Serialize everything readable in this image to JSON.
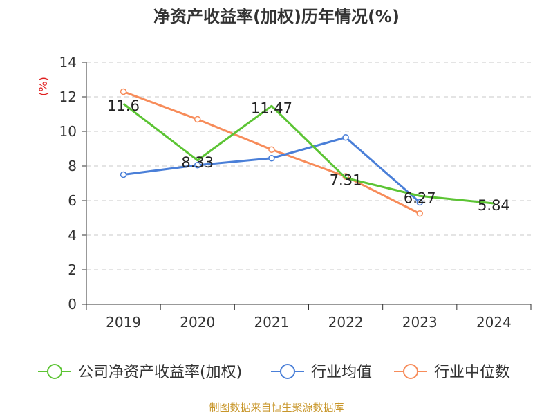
{
  "title": "净资产收益率(加权)历年情况(%)",
  "source": "制图数据来自恒生聚源数据库",
  "chart_data": {
    "type": "line",
    "ylabel": "(%)",
    "ylim": [
      0,
      14
    ],
    "yticks": [
      0,
      2,
      4,
      6,
      8,
      10,
      12,
      14
    ],
    "grid": true,
    "legend_position": "bottom",
    "categories": [
      "2019",
      "2020",
      "2021",
      "2022",
      "2023",
      "2024"
    ],
    "series": [
      {
        "name": "公司净资产收益率(加权)",
        "color": "#5cc434",
        "values": [
          11.6,
          8.33,
          11.47,
          7.31,
          6.27,
          5.84
        ],
        "labels": [
          "11.6",
          "8.33",
          "11.47",
          "7.31",
          "6.27",
          "5.84"
        ]
      },
      {
        "name": "行业均值",
        "color": "#4a7fd8",
        "values": [
          7.5,
          8.05,
          8.45,
          9.65,
          5.9,
          null
        ]
      },
      {
        "name": "行业中位数",
        "color": "#f78c5a",
        "values": [
          12.3,
          10.7,
          8.95,
          7.4,
          5.25,
          null
        ]
      }
    ]
  }
}
